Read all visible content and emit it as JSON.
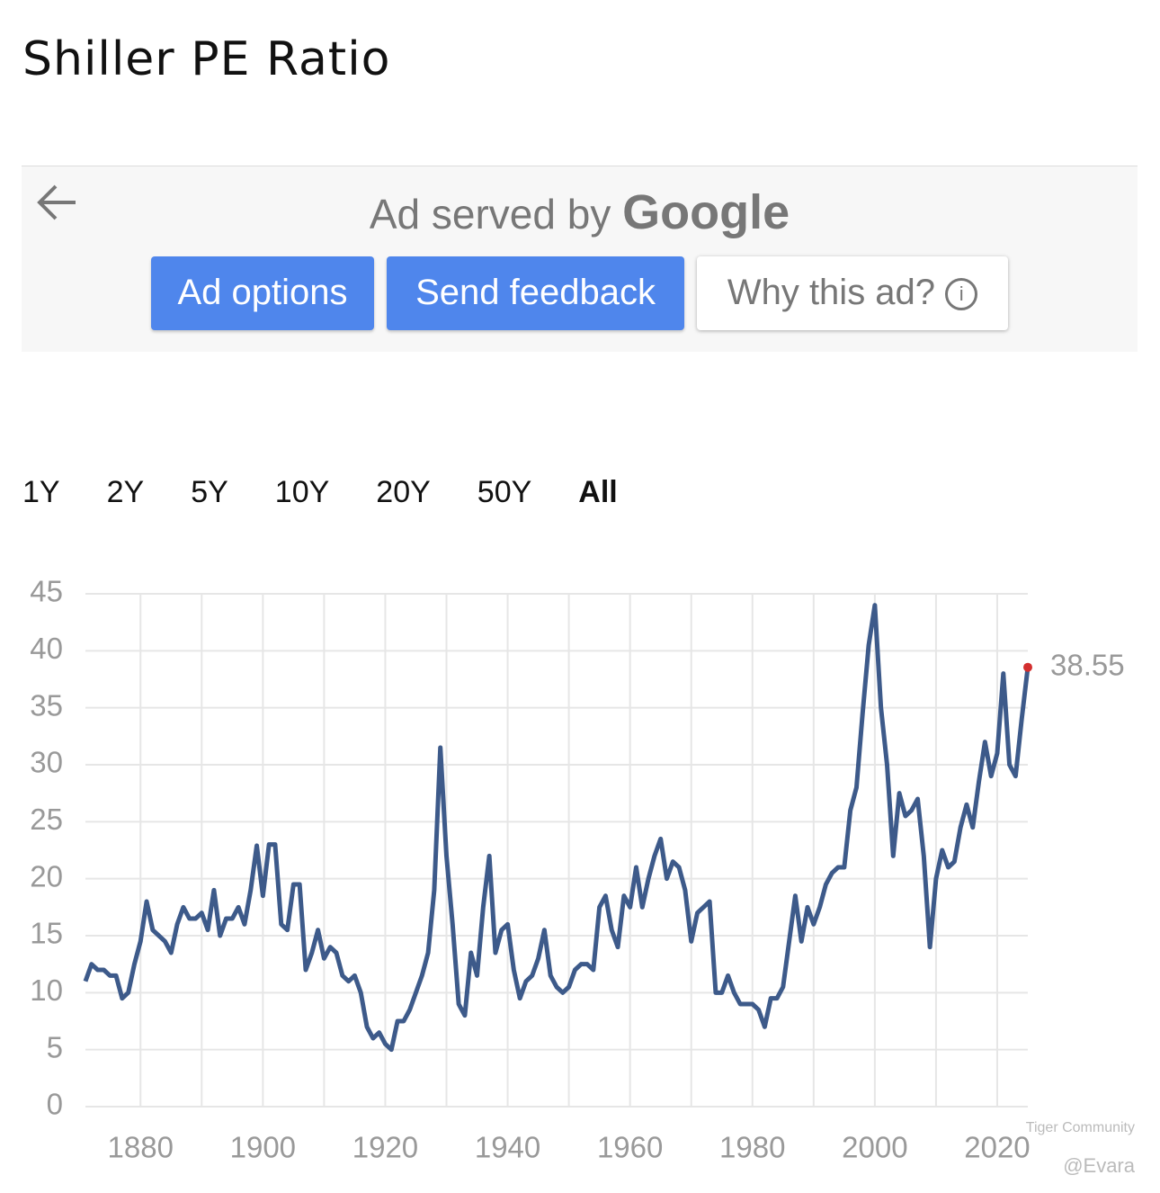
{
  "header": {
    "title": "Shiller PE Ratio"
  },
  "ad": {
    "served_by": "Ad served by",
    "brand": "Google",
    "buttons": [
      "Ad options",
      "Send feedback",
      "Why this ad?"
    ]
  },
  "ranges": {
    "items": [
      "1Y",
      "2Y",
      "5Y",
      "10Y",
      "20Y",
      "50Y",
      "All"
    ],
    "active": "All"
  },
  "chart_data": {
    "type": "line",
    "x": [
      1871,
      1872,
      1873,
      1874,
      1875,
      1876,
      1877,
      1878,
      1879,
      1880,
      1881,
      1882,
      1883,
      1884,
      1885,
      1886,
      1887,
      1888,
      1889,
      1890,
      1891,
      1892,
      1893,
      1894,
      1895,
      1896,
      1897,
      1898,
      1899,
      1900,
      1901,
      1902,
      1903,
      1904,
      1905,
      1906,
      1907,
      1908,
      1909,
      1910,
      1911,
      1912,
      1913,
      1914,
      1915,
      1916,
      1917,
      1918,
      1919,
      1920,
      1921,
      1922,
      1923,
      1924,
      1925,
      1926,
      1927,
      1928,
      1929,
      1930,
      1931,
      1932,
      1933,
      1934,
      1935,
      1936,
      1937,
      1938,
      1939,
      1940,
      1941,
      1942,
      1943,
      1944,
      1945,
      1946,
      1947,
      1948,
      1949,
      1950,
      1951,
      1952,
      1953,
      1954,
      1955,
      1956,
      1957,
      1958,
      1959,
      1960,
      1961,
      1962,
      1963,
      1964,
      1965,
      1966,
      1967,
      1968,
      1969,
      1970,
      1971,
      1972,
      1973,
      1974,
      1975,
      1976,
      1977,
      1978,
      1979,
      1980,
      1981,
      1982,
      1983,
      1984,
      1985,
      1986,
      1987,
      1988,
      1989,
      1990,
      1991,
      1992,
      1993,
      1994,
      1995,
      1996,
      1997,
      1998,
      1999,
      2000,
      2001,
      2002,
      2003,
      2004,
      2005,
      2006,
      2007,
      2008,
      2009,
      2010,
      2011,
      2012,
      2013,
      2014,
      2015,
      2016,
      2017,
      2018,
      2019,
      2020,
      2021,
      2022,
      2023,
      2024,
      2025
    ],
    "values": [
      11,
      12.5,
      12,
      12,
      11.5,
      11.5,
      9.5,
      10,
      12.5,
      14.5,
      18,
      15.5,
      15,
      14.5,
      13.5,
      16,
      17.5,
      16.5,
      16.5,
      17,
      15.5,
      19,
      15,
      16.5,
      16.5,
      17.5,
      16,
      19,
      22.9,
      18.5,
      23,
      23,
      16,
      15.5,
      19.5,
      19.5,
      12,
      13.5,
      15.5,
      13,
      14,
      13.5,
      11.5,
      11,
      11.5,
      10,
      7,
      6,
      6.5,
      5.5,
      5,
      7.5,
      7.5,
      8.5,
      10,
      11.5,
      13.5,
      19,
      31.5,
      22,
      16,
      9,
      8,
      13.5,
      11.5,
      17.5,
      22,
      13.5,
      15.5,
      16,
      12,
      9.5,
      11,
      11.5,
      13,
      15.5,
      11.5,
      10.5,
      10,
      10.5,
      12,
      12.5,
      12.5,
      12,
      17.5,
      18.5,
      15.5,
      14,
      18.5,
      17.5,
      21,
      17.5,
      20,
      22,
      23.5,
      20,
      21.5,
      21,
      19,
      14.5,
      17,
      17.5,
      18,
      10,
      10,
      11.5,
      10,
      9,
      9,
      9,
      8.5,
      7,
      9.5,
      9.5,
      10.5,
      14.5,
      18.5,
      14.5,
      17.5,
      16,
      17.5,
      19.5,
      20.5,
      21,
      21,
      26,
      28,
      34.5,
      40.5,
      44,
      35,
      30,
      22,
      27.5,
      25.5,
      26,
      27,
      22,
      14,
      20,
      22.5,
      21,
      21.5,
      24.5,
      26.5,
      24.5,
      28.5,
      32,
      29,
      31,
      38,
      30,
      29,
      34,
      38.55
    ],
    "color": "#3d5a8a",
    "last_point_color": "#d32f2f",
    "xlim": [
      1871,
      2025
    ],
    "xticks": [
      1880,
      1900,
      1920,
      1940,
      1960,
      1980,
      2000,
      2020
    ],
    "x_gridlines": [
      1890,
      1910,
      1930,
      1950,
      1970,
      1990,
      2010
    ],
    "ylim": [
      0,
      45
    ],
    "yticks": [
      0,
      5,
      10,
      15,
      20,
      25,
      30,
      35,
      40,
      45
    ],
    "grid": true
  },
  "watermark": {
    "brand": "Tiger Community",
    "user": "@Evara"
  }
}
